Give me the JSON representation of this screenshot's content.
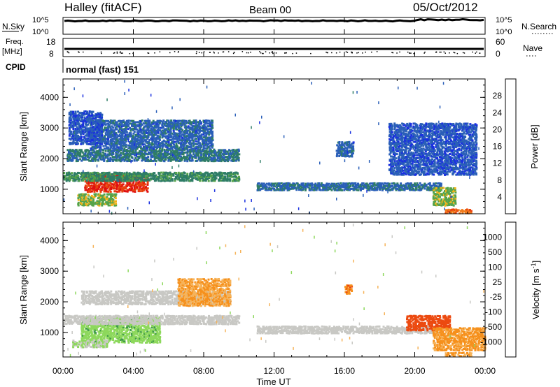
{
  "header": {
    "station": "Halley (fitACF)",
    "beam": "Beam 00",
    "date": "05/Oct/2012"
  },
  "params": {
    "nsky_label": "N.Sky",
    "nsky_hi": "10^5",
    "nsky_lo": "10^0",
    "nsearch_label": "N.Search",
    "nsearch_hi": "10^5",
    "nsearch_lo": "10^0",
    "freq_label1": "Freq.",
    "freq_label2": "[MHz]",
    "freq_hi": "18",
    "freq_lo": "8",
    "nave_label": "Nave",
    "nave_hi": "60",
    "nave_lo": "0",
    "cpid_label": "CPID",
    "cpid_text": "normal (fast) 151"
  },
  "x_axis": {
    "label": "Time UT",
    "ticks": [
      "00:00",
      "04:00",
      "08:00",
      "12:00",
      "16:00",
      "20:00",
      "00:00"
    ]
  },
  "colors": {
    "power": [
      "#1a30e0",
      "#2a5fb8",
      "#2e7d66",
      "#55a34a",
      "#f2b21a",
      "#f07a1a",
      "#e8410f",
      "#e01010"
    ],
    "velocity": [
      "#e01010",
      "#ec4a10",
      "#f6901c",
      "#f6b35a",
      "#c8c8c4",
      "#8dd85c",
      "#3f9a4a",
      "#2d6da8",
      "#2244bb"
    ]
  },
  "chart_data": [
    {
      "type": "heatmap",
      "panel": "power",
      "title": "",
      "xlabel": "",
      "ylabel": "Slant Range [km]",
      "xlim": [
        "00:00",
        "24:00"
      ],
      "ylim": [
        200,
        4600
      ],
      "yticks": [
        "1000",
        "2000",
        "3000",
        "4000"
      ],
      "colorbar": {
        "label": "Power [dB]",
        "ticks": [
          "4",
          "8",
          "12",
          "16",
          "20",
          "24",
          "28"
        ],
        "range": [
          0,
          30
        ]
      },
      "regions": [
        {
          "t": [
            1.2,
            4.8
          ],
          "r": [
            950,
            1550
          ],
          "value": 26
        },
        {
          "t": [
            0.0,
            10.0
          ],
          "r": [
            1300,
            1600
          ],
          "value": 10
        },
        {
          "t": [
            0.2,
            10.0
          ],
          "r": [
            1950,
            2350
          ],
          "value": 8
        },
        {
          "t": [
            1.5,
            8.5
          ],
          "r": [
            2350,
            3300
          ],
          "value": 6
        },
        {
          "t": [
            0.3,
            2.2
          ],
          "r": [
            2500,
            3600
          ],
          "value": 5
        },
        {
          "t": [
            0.8,
            3.0
          ],
          "r": [
            500,
            900
          ],
          "value": 14
        },
        {
          "t": [
            11.0,
            21.5
          ],
          "r": [
            1000,
            1250
          ],
          "value": 7
        },
        {
          "t": [
            15.5,
            16.5
          ],
          "r": [
            2100,
            2600
          ],
          "value": 6
        },
        {
          "t": [
            18.5,
            23.5
          ],
          "r": [
            1500,
            3200
          ],
          "value": 5
        },
        {
          "t": [
            21.0,
            22.3
          ],
          "r": [
            500,
            1100
          ],
          "value": 14
        },
        {
          "t": [
            21.7,
            23.2
          ],
          "r": [
            250,
            400
          ],
          "value": 22
        }
      ]
    },
    {
      "type": "heatmap",
      "panel": "velocity",
      "title": "",
      "xlabel": "Time UT",
      "ylabel": "Slant Range [km]",
      "xlim": [
        "00:00",
        "24:00"
      ],
      "ylim": [
        200,
        4600
      ],
      "yticks": [
        "1000",
        "2000",
        "3000",
        "4000"
      ],
      "colorbar": {
        "label": "Velocity [m s^-1]",
        "ticks": [
          "-1000",
          "-500",
          "-100",
          "-25",
          "25",
          "100",
          "500",
          "1000"
        ],
        "range": [
          -1200,
          1200
        ]
      },
      "regions": [
        {
          "t": [
            1.0,
            5.5
          ],
          "r": [
            700,
            1550
          ],
          "value": 300
        },
        {
          "t": [
            0.5,
            2.5
          ],
          "r": [
            550,
            800
          ],
          "value": 120
        },
        {
          "t": [
            0.0,
            10.0
          ],
          "r": [
            1300,
            1600
          ],
          "value": 0
        },
        {
          "t": [
            1.0,
            9.5
          ],
          "r": [
            1950,
            2400
          ],
          "value": 0
        },
        {
          "t": [
            6.5,
            9.5
          ],
          "r": [
            1900,
            2800
          ],
          "value": -400
        },
        {
          "t": [
            11.0,
            21.5
          ],
          "r": [
            1000,
            1250
          ],
          "value": 0
        },
        {
          "t": [
            16.0,
            16.4
          ],
          "r": [
            2300,
            2600
          ],
          "value": -600
        },
        {
          "t": [
            19.5,
            22.0
          ],
          "r": [
            1100,
            1600
          ],
          "value": -800
        },
        {
          "t": [
            21.0,
            24.0
          ],
          "r": [
            450,
            1200
          ],
          "value": -450
        },
        {
          "t": [
            21.7,
            23.2
          ],
          "r": [
            250,
            400
          ],
          "value": -400
        }
      ]
    }
  ]
}
